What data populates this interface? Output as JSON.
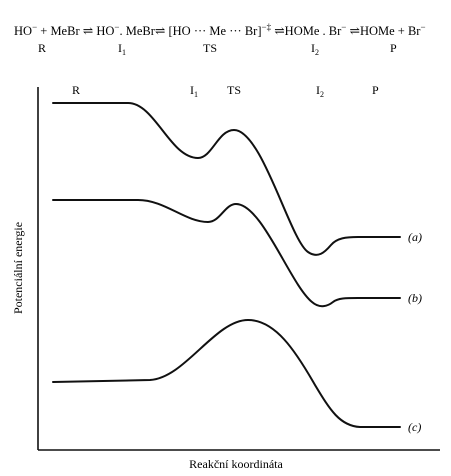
{
  "equation": {
    "reaction": [
      {
        "text": "HO",
        "sup": "−"
      },
      {
        "text": " + MeBr ⇌ HO",
        "sup": "−"
      },
      {
        "text": ". MeBr⇌ [HO ··· Me ··· Br]",
        "sup": "−‡"
      },
      {
        "text": " ⇌HOMe . Br",
        "sup": "−"
      },
      {
        "text": " ⇌HOMe + Br",
        "sup": "−"
      }
    ],
    "labels": [
      {
        "text": "R"
      },
      {
        "text": "I",
        "sub": "1"
      },
      {
        "text": "TS"
      },
      {
        "text": "I",
        "sub": "2"
      },
      {
        "text": "P"
      }
    ]
  },
  "diagram": {
    "stage_labels": [
      {
        "text": "R"
      },
      {
        "text": "I",
        "sub": "1"
      },
      {
        "text": "TS"
      },
      {
        "text": "I",
        "sub": "2"
      },
      {
        "text": "P"
      }
    ],
    "curve_labels": [
      "(a)",
      "(b)",
      "(c)"
    ],
    "y_axis_label": "Potenciální energie",
    "x_axis_label": "Reakční koordináta"
  }
}
